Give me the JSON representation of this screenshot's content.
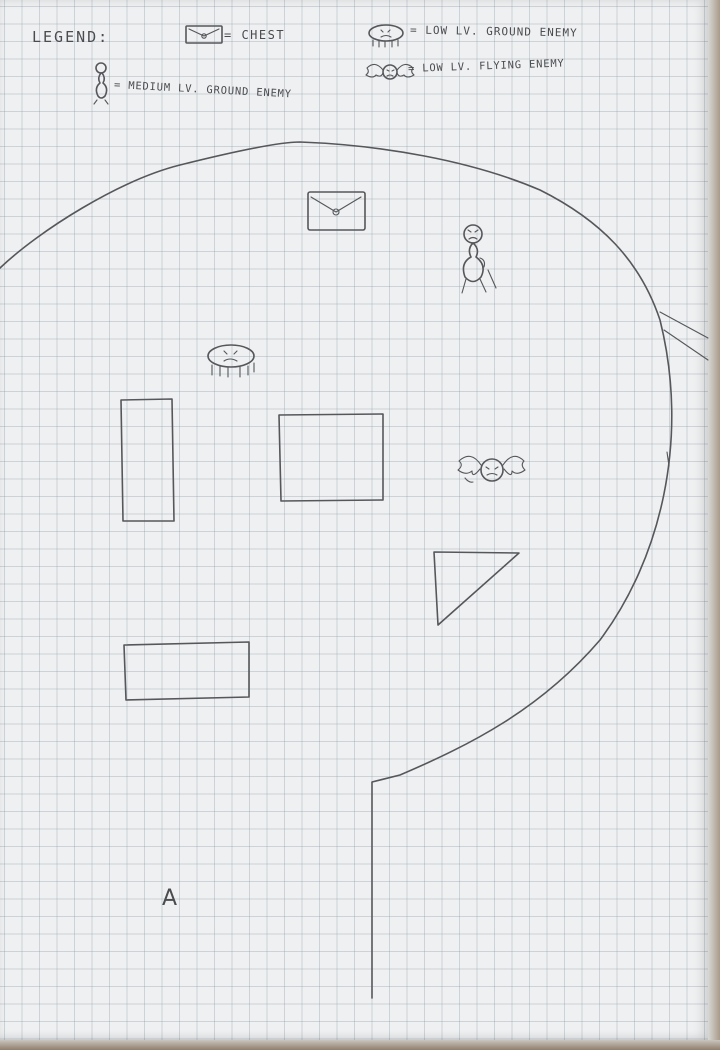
{
  "legend": {
    "title": "LEGEND:",
    "chest": "= CHEST",
    "low_ground_enemy": "= LOW LV. GROUND ENEMY",
    "medium_ground_enemy": "= MEDIUM LV. GROUND ENEMY",
    "low_flying_enemy": "= LOW LV. FLYING ENEMY"
  },
  "map": {
    "point_label": "A"
  },
  "colors": {
    "paper": "#eef0f1",
    "grid": "#8c9aa8",
    "pencil": "#55575b"
  }
}
